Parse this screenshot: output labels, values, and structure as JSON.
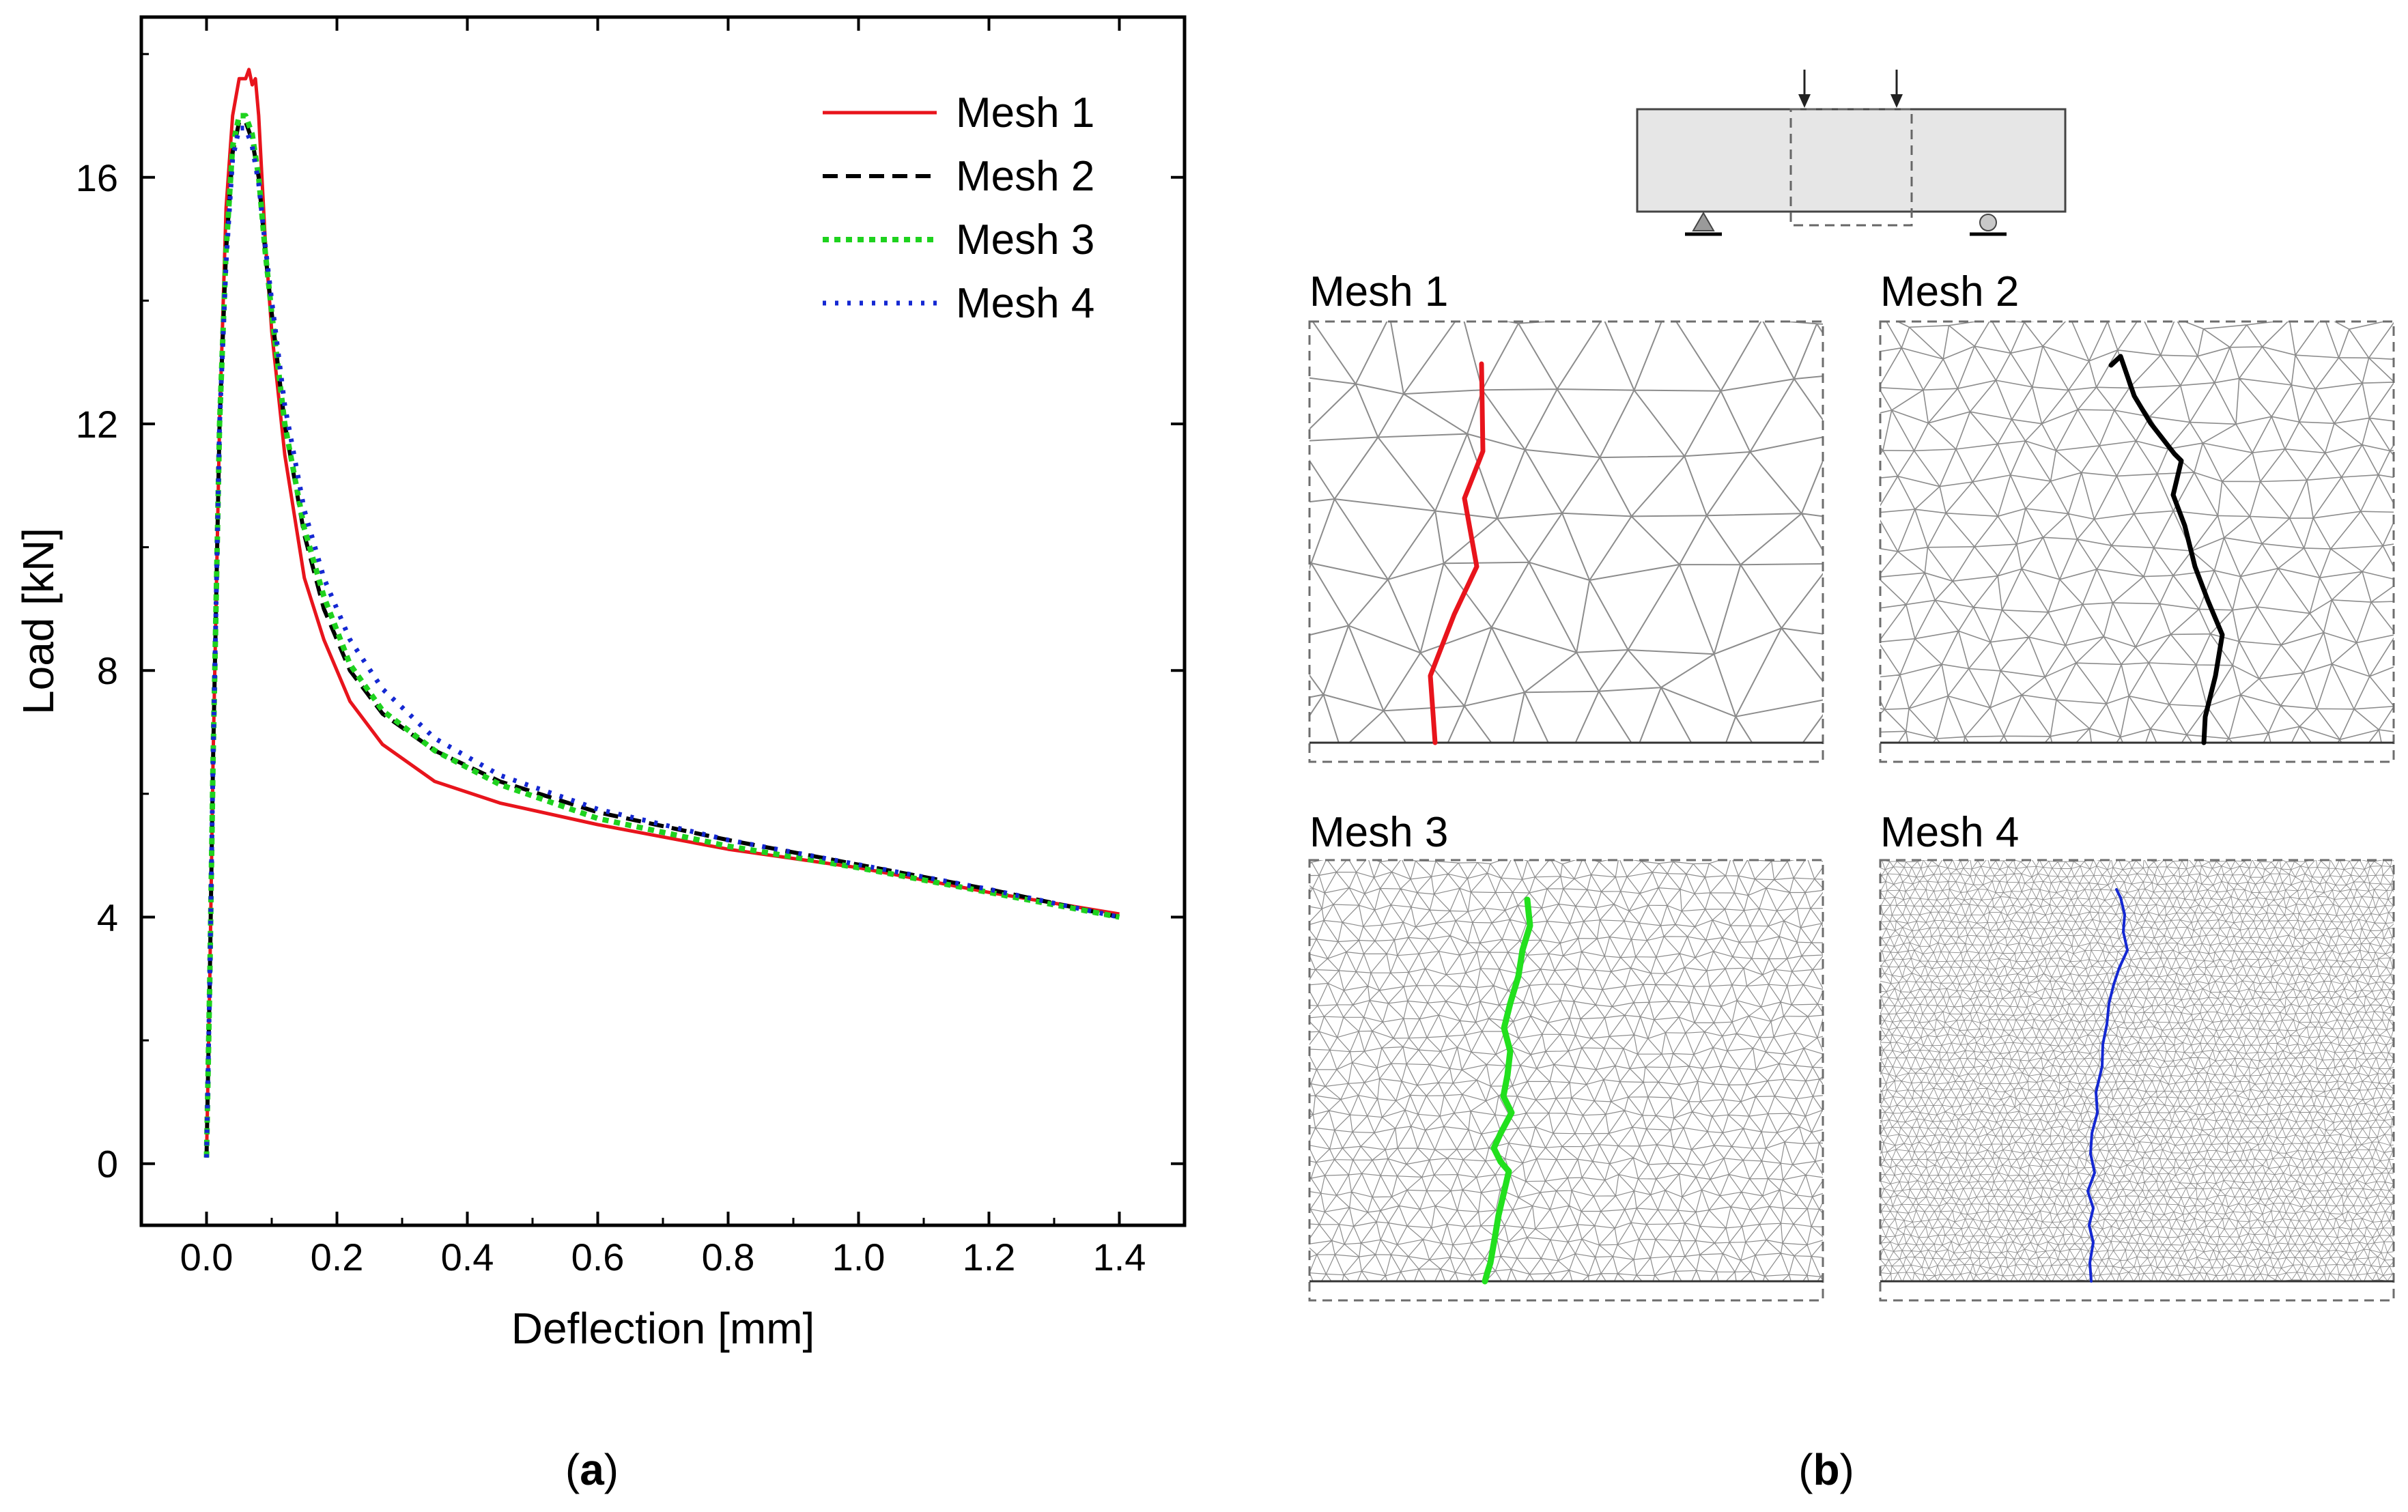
{
  "chart_data": {
    "type": "line",
    "title": "",
    "xlabel": "Deflection [mm]",
    "ylabel": "Load [kN]",
    "xlim": [
      -0.1,
      1.5
    ],
    "ylim": [
      -1,
      18.6
    ],
    "xticks": [
      0.0,
      0.2,
      0.4,
      0.6,
      0.8,
      1.0,
      1.2,
      1.4
    ],
    "xtick_labels": [
      "0.0",
      "0.2",
      "0.4",
      "0.6",
      "0.8",
      "1.0",
      "1.2",
      "1.4"
    ],
    "yticks": [
      0,
      4,
      8,
      12,
      16
    ],
    "ytick_labels": [
      "0",
      "4",
      "8",
      "12",
      "16"
    ],
    "grid": false,
    "legend_position": "top-right",
    "series": [
      {
        "name": "Mesh 1",
        "color": "#e8141c",
        "dash": "solid",
        "x": [
          0.0,
          0.005,
          0.01,
          0.02,
          0.03,
          0.04,
          0.05,
          0.06,
          0.065,
          0.07,
          0.075,
          0.08,
          0.09,
          0.1,
          0.12,
          0.15,
          0.18,
          0.22,
          0.27,
          0.35,
          0.45,
          0.6,
          0.8,
          1.0,
          1.2,
          1.4
        ],
        "y": [
          0.1,
          3.0,
          6.5,
          12.0,
          15.5,
          17.0,
          17.6,
          17.6,
          17.75,
          17.5,
          17.6,
          17.0,
          15.0,
          13.5,
          11.5,
          9.5,
          8.5,
          7.5,
          6.8,
          6.2,
          5.85,
          5.5,
          5.1,
          4.8,
          4.4,
          4.05
        ]
      },
      {
        "name": "Mesh 2",
        "color": "#000000",
        "dash": "dashed",
        "x": [
          0.0,
          0.005,
          0.01,
          0.02,
          0.03,
          0.04,
          0.05,
          0.06,
          0.07,
          0.08,
          0.09,
          0.1,
          0.12,
          0.15,
          0.18,
          0.22,
          0.27,
          0.35,
          0.45,
          0.6,
          0.8,
          1.0,
          1.2,
          1.4
        ],
        "y": [
          0.1,
          3.0,
          6.5,
          12.0,
          14.8,
          16.4,
          16.9,
          16.9,
          16.6,
          16.0,
          14.8,
          13.8,
          12.0,
          10.2,
          9.0,
          8.0,
          7.3,
          6.7,
          6.2,
          5.7,
          5.25,
          4.85,
          4.45,
          4.0
        ]
      },
      {
        "name": "Mesh 3",
        "color": "#1ed21e",
        "dash": "dotted",
        "x": [
          0.0,
          0.005,
          0.01,
          0.02,
          0.03,
          0.04,
          0.05,
          0.06,
          0.07,
          0.08,
          0.09,
          0.1,
          0.12,
          0.15,
          0.18,
          0.22,
          0.27,
          0.35,
          0.45,
          0.6,
          0.8,
          1.0,
          1.2,
          1.4
        ],
        "y": [
          0.1,
          3.0,
          6.5,
          12.0,
          14.8,
          16.5,
          17.0,
          17.0,
          16.7,
          16.0,
          14.8,
          13.8,
          12.0,
          10.3,
          9.2,
          8.1,
          7.35,
          6.7,
          6.15,
          5.6,
          5.15,
          4.8,
          4.4,
          4.0
        ]
      },
      {
        "name": "Mesh 4",
        "color": "#1428d2",
        "dash": "dot-sparse",
        "x": [
          0.0,
          0.005,
          0.01,
          0.02,
          0.03,
          0.04,
          0.05,
          0.06,
          0.07,
          0.08,
          0.09,
          0.1,
          0.12,
          0.15,
          0.18,
          0.22,
          0.27,
          0.35,
          0.45,
          0.6,
          0.8,
          1.0,
          1.2,
          1.4
        ],
        "y": [
          0.1,
          3.0,
          6.5,
          12.0,
          14.6,
          16.3,
          16.8,
          16.8,
          16.5,
          15.9,
          14.9,
          14.0,
          12.3,
          10.6,
          9.5,
          8.5,
          7.7,
          6.9,
          6.3,
          5.75,
          5.25,
          4.85,
          4.45,
          4.0
        ]
      }
    ]
  },
  "diagram": {
    "mesh_panels": [
      {
        "label": "Mesh 1",
        "crack_color": "#e8141c"
      },
      {
        "label": "Mesh 2",
        "crack_color": "#000000"
      },
      {
        "label": "Mesh 3",
        "crack_color": "#22e01e"
      },
      {
        "label": "Mesh 4",
        "crack_color": "#1428d2"
      }
    ]
  },
  "captions": {
    "a_paren_open": "(",
    "a_letter": "a",
    "a_paren_close": ")",
    "b_paren_open": "(",
    "b_letter": "b",
    "b_paren_close": ")"
  }
}
